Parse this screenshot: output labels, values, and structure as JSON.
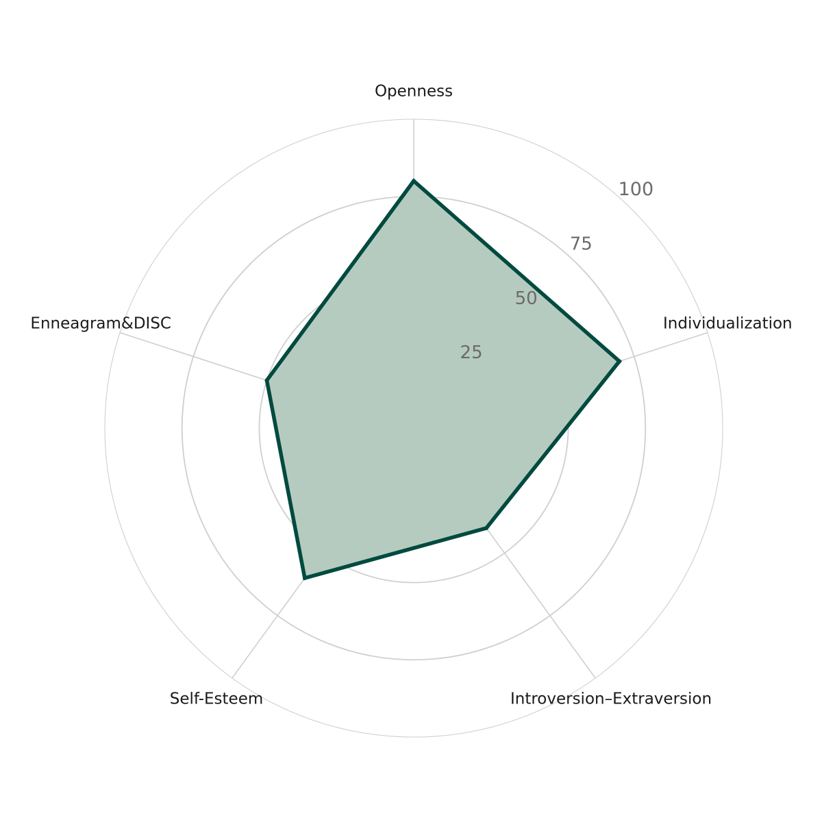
{
  "chart_data": {
    "type": "radar",
    "title": "",
    "axes": [
      "Openness",
      "Individualization",
      "Introversion–Extraversion",
      "Self-Esteem",
      "Enneagram&DISC"
    ],
    "series": [
      {
        "values": [
          80,
          70,
          40,
          60,
          50
        ]
      }
    ],
    "r_range": [
      0,
      100
    ],
    "r_ticks": [
      25,
      50,
      75,
      100
    ],
    "grid": true,
    "legend": "none",
    "colors": {
      "line": "#004a3f",
      "fill": "#b6cbbf",
      "grid": "#cfcfcf",
      "tick_text": "#6b6b6b"
    }
  }
}
